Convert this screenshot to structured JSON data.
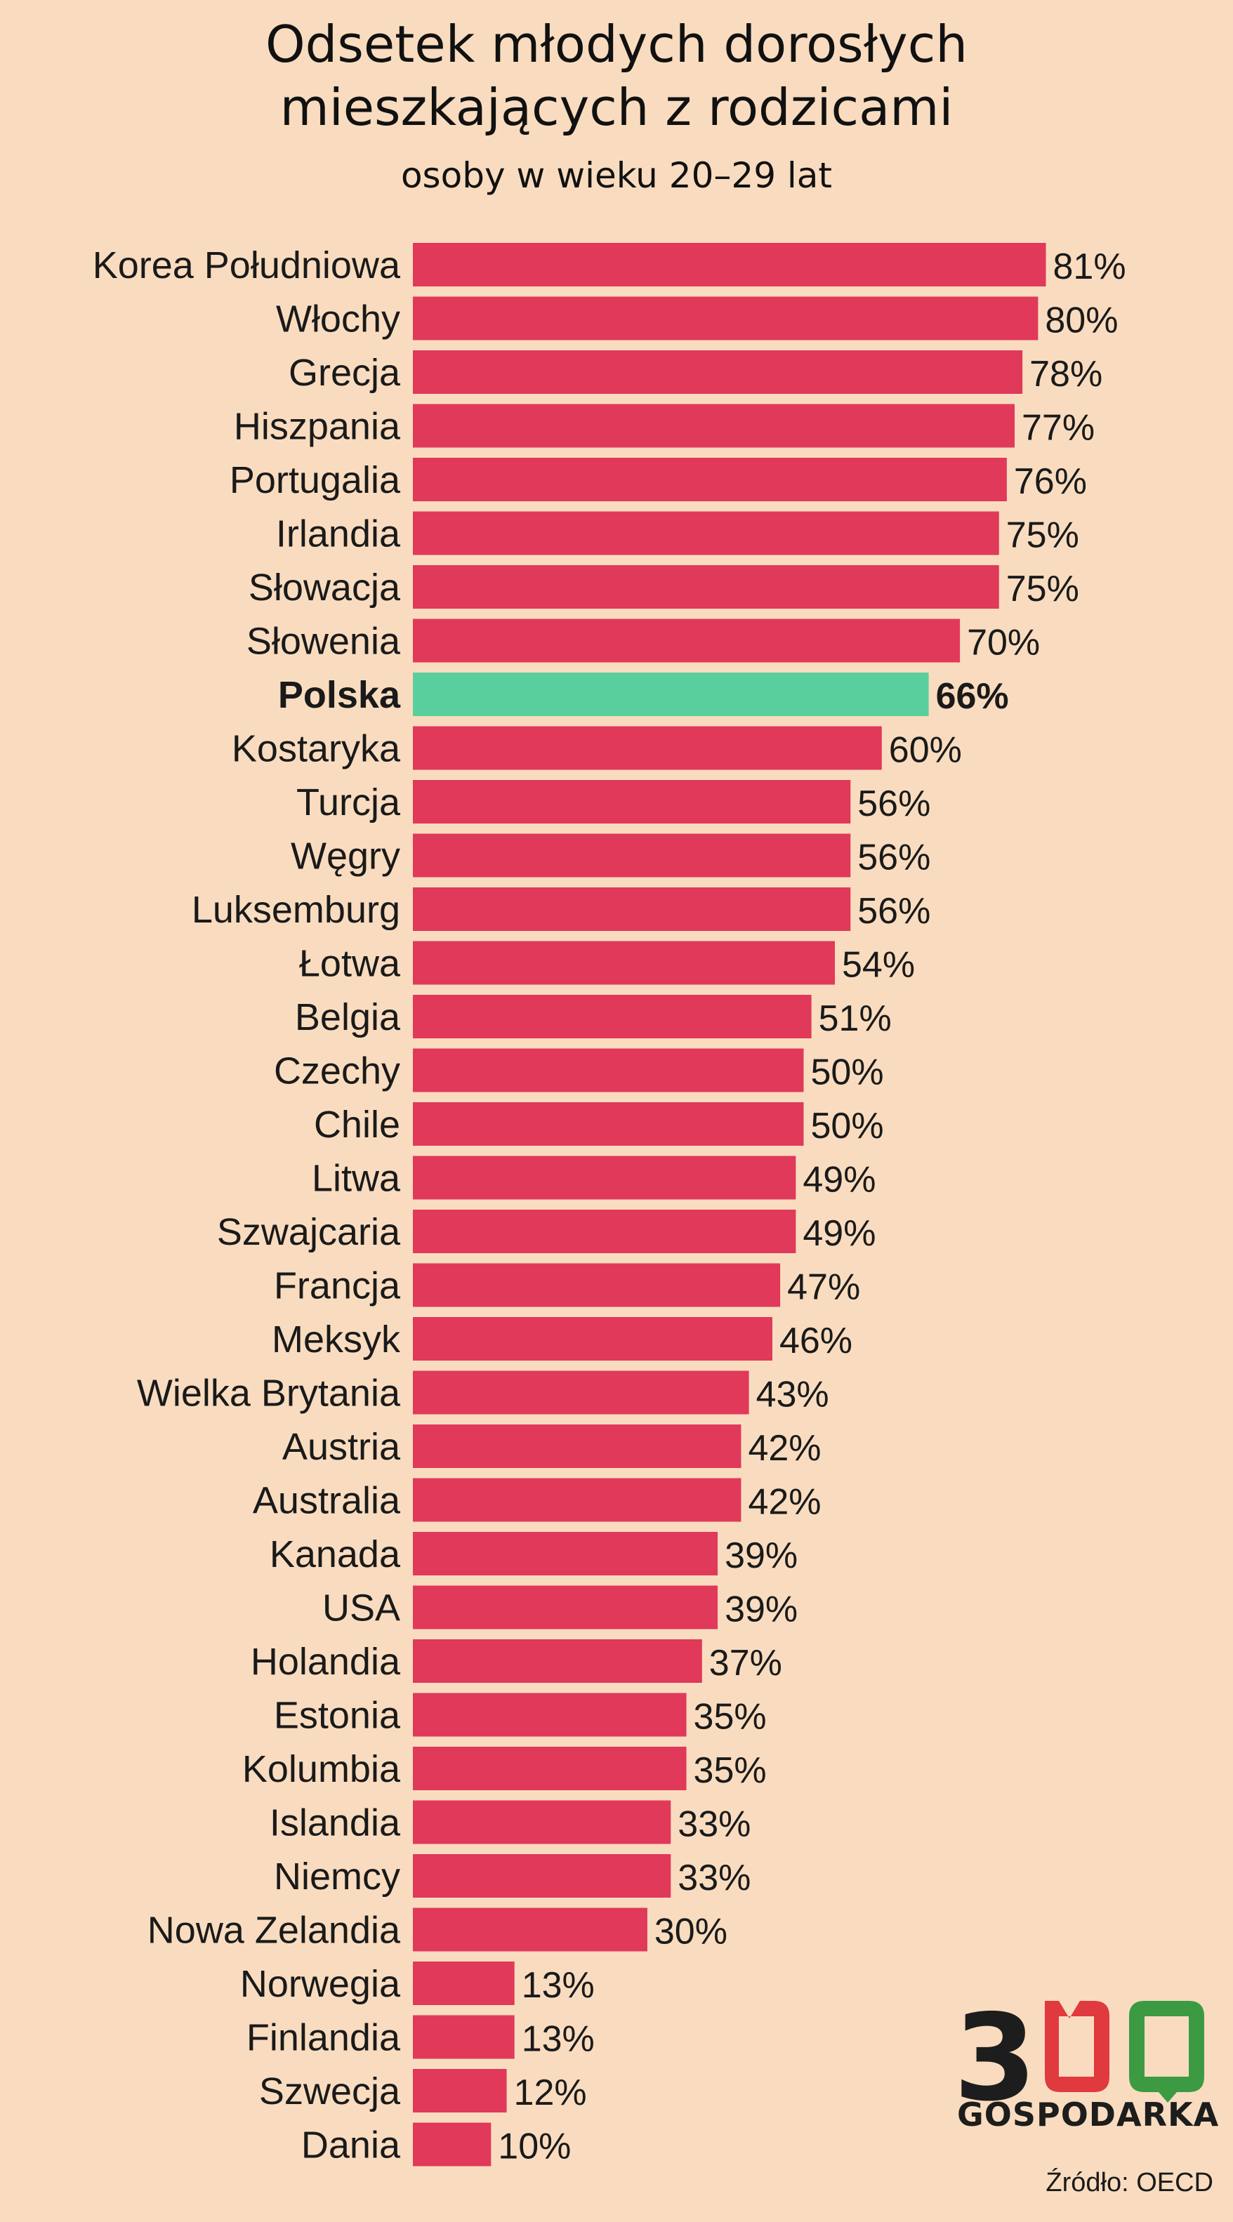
{
  "chart_data": {
    "type": "bar",
    "orientation": "horizontal",
    "title": "Odsetek młodych dorosłych mieszkających z rodzicami",
    "subtitle": "osoby w wieku 20–29 lat",
    "categories": [
      "Korea Południowa",
      "Włochy",
      "Grecja",
      "Hiszpania",
      "Portugalia",
      "Irlandia",
      "Słowacja",
      "Słowenia",
      "Polska",
      "Kostaryka",
      "Turcja",
      "Węgry",
      "Luksemburg",
      "Łotwa",
      "Belgia",
      "Czechy",
      "Chile",
      "Litwa",
      "Szwajcaria",
      "Francja",
      "Meksyk",
      "Wielka Brytania",
      "Austria",
      "Australia",
      "Kanada",
      "USA",
      "Holandia",
      "Estonia",
      "Kolumbia",
      "Islandia",
      "Niemcy",
      "Nowa Zelandia",
      "Norwegia",
      "Finlandia",
      "Szwecja",
      "Dania"
    ],
    "values": [
      81,
      80,
      78,
      77,
      76,
      75,
      75,
      70,
      66,
      60,
      56,
      56,
      56,
      54,
      51,
      50,
      50,
      49,
      49,
      47,
      46,
      43,
      42,
      42,
      39,
      39,
      37,
      35,
      35,
      33,
      33,
      30,
      13,
      13,
      12,
      10
    ],
    "value_labels": [
      "81%",
      "80%",
      "78%",
      "77%",
      "76%",
      "75%",
      "75%",
      "70%",
      "66%",
      "60%",
      "56%",
      "56%",
      "56%",
      "54%",
      "51%",
      "50%",
      "50%",
      "49%",
      "49%",
      "47%",
      "46%",
      "43%",
      "42%",
      "42%",
      "39%",
      "39%",
      "37%",
      "35%",
      "35%",
      "33%",
      "33%",
      "30%",
      "13%",
      "13%",
      "12%",
      "10%"
    ],
    "highlight": "Polska",
    "colors": {
      "bar": "#e0395a",
      "highlight": "#58cf9c",
      "background": "#f9dcbf"
    },
    "grid": false,
    "legend": "none"
  },
  "logo": {
    "mark": "300",
    "name": "GOSPODARKA",
    "colors": {
      "three": "#1d1d1d",
      "first_zero": "#e03a3e",
      "second_zero": "#3c9a43"
    }
  },
  "source": "Źródło: OECD"
}
